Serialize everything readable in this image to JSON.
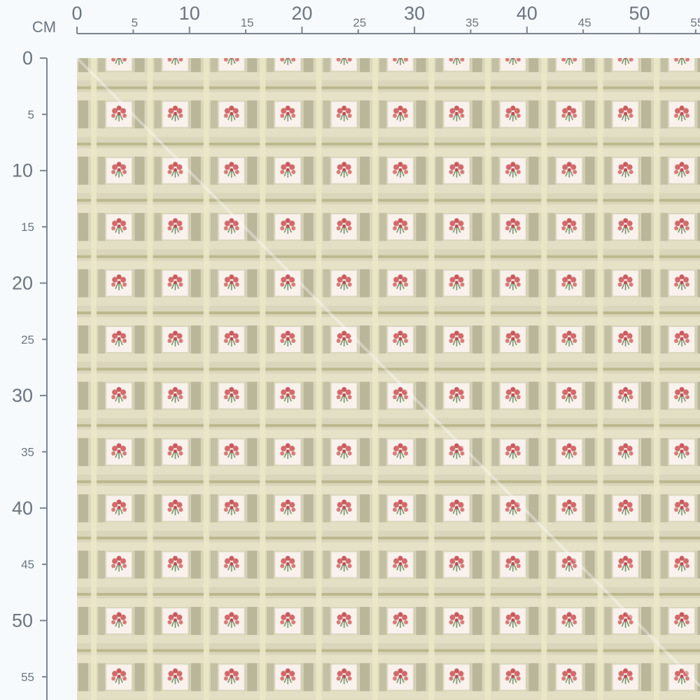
{
  "ruler_unit": "CM",
  "top_ruler": {
    "labels": [
      0,
      5,
      10,
      15,
      20,
      25,
      30,
      35,
      40,
      45,
      50,
      55
    ]
  },
  "left_ruler": {
    "labels": [
      0,
      5,
      10,
      15,
      20,
      25,
      30,
      35,
      40,
      45,
      50,
      55
    ]
  }
}
